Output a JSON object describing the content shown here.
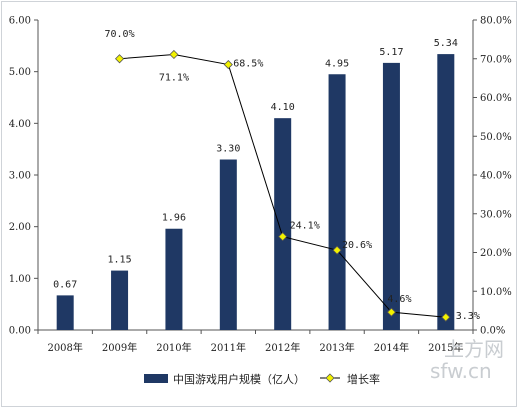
{
  "chart_data": {
    "type": "bar",
    "categories": [
      "2008年",
      "2009年",
      "2010年",
      "2011年",
      "2012年",
      "2013年",
      "2014年",
      "2015年"
    ],
    "series": [
      {
        "name": "中国游戏用户规模（亿人）",
        "type": "bar",
        "axis": "left",
        "values": [
          0.67,
          1.15,
          1.96,
          3.3,
          4.1,
          4.95,
          5.17,
          5.34
        ],
        "labels": [
          "0.67",
          "1.15",
          "1.96",
          "3.30",
          "4.10",
          "4.95",
          "5.17",
          "5.34"
        ],
        "color": "#1f3864"
      },
      {
        "name": "增长率",
        "type": "line",
        "axis": "right",
        "values": [
          null,
          70.0,
          71.1,
          68.5,
          24.1,
          20.6,
          4.6,
          3.3
        ],
        "labels": [
          "",
          "70.0%",
          "71.1%",
          "68.5%",
          "24.1%",
          "20.6%",
          "4.6%",
          "3.3%"
        ],
        "color": "#000000",
        "marker_color": "#f2f200"
      }
    ],
    "y_left": {
      "ylim": [
        0,
        6
      ],
      "ticks": [
        "0.00",
        "1.00",
        "2.00",
        "3.00",
        "4.00",
        "5.00",
        "6.00"
      ]
    },
    "y_right": {
      "ylim": [
        0,
        80
      ],
      "ticks": [
        "0.0%",
        "10.0%",
        "20.0%",
        "30.0%",
        "40.0%",
        "50.0%",
        "60.0%",
        "70.0%",
        "80.0%"
      ]
    },
    "title": "",
    "xlabel": "",
    "ylabel": "",
    "grid": false,
    "legend": "bottom"
  },
  "watermark": {
    "line1": "上方网",
    "line2": "sfw.cn"
  }
}
